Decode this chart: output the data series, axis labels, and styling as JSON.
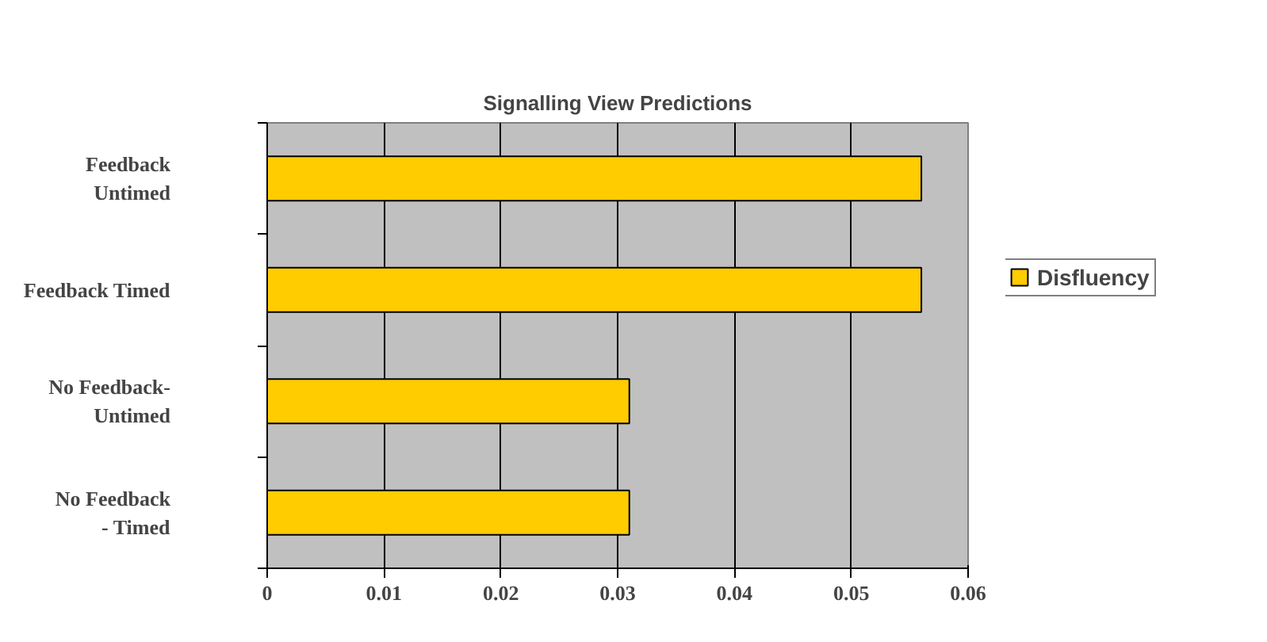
{
  "chart_data": {
    "type": "bar",
    "orientation": "horizontal",
    "title": "Signalling View Predictions",
    "categories": [
      "Feedback Untimed",
      "Feedback Timed",
      "No Feedback-Untimed",
      "No Feedback - Timed"
    ],
    "series": [
      {
        "name": "Disfluency",
        "color": "#ffcc00",
        "values": [
          0.056,
          0.056,
          0.031,
          0.031
        ]
      }
    ],
    "xlim": [
      0,
      0.06
    ],
    "xticks": [
      0,
      0.01,
      0.02,
      0.03,
      0.04,
      0.05,
      0.06
    ],
    "grid": "x",
    "legend": "right"
  }
}
